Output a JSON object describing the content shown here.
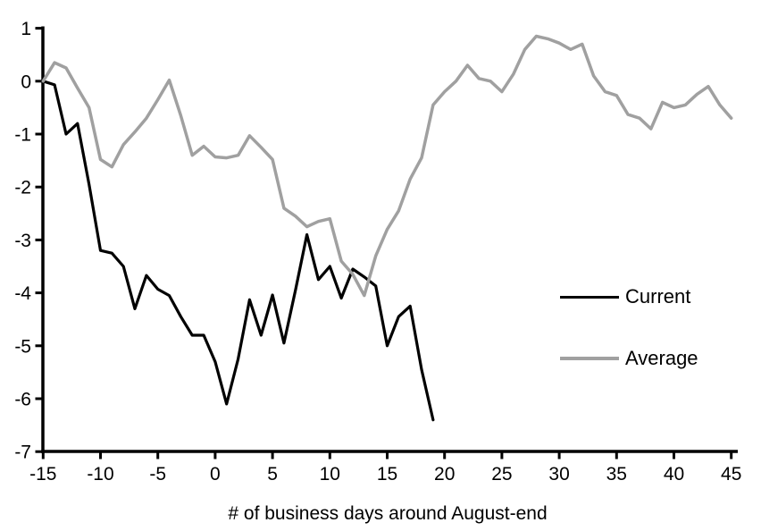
{
  "chart_data": {
    "type": "line",
    "title": "",
    "xlabel": "# of business days around August-end",
    "ylabel": "",
    "xlim": [
      -15,
      45
    ],
    "ylim": [
      -7,
      1
    ],
    "x_ticks": [
      -15,
      -10,
      -5,
      0,
      5,
      10,
      15,
      20,
      25,
      30,
      35,
      40,
      45
    ],
    "y_ticks": [
      1,
      0,
      -1,
      -2,
      -3,
      -4,
      -5,
      -6,
      -7
    ],
    "grid": false,
    "legend_position": "right-middle",
    "series": [
      {
        "name": "Current",
        "color": "#000000",
        "x_start": -15,
        "x_step": 1,
        "values": [
          0,
          -0.07,
          -1.0,
          -0.8,
          -1.95,
          -3.2,
          -3.25,
          -3.5,
          -4.3,
          -3.67,
          -3.93,
          -4.05,
          -4.45,
          -4.8,
          -4.8,
          -5.3,
          -6.1,
          -5.25,
          -4.13,
          -4.8,
          -4.04,
          -4.95,
          -3.95,
          -2.9,
          -3.75,
          -3.5,
          -4.1,
          -3.55,
          -3.7,
          -3.87,
          -5.0,
          -4.45,
          -4.25,
          -5.45,
          -6.4
        ]
      },
      {
        "name": "Average",
        "color": "#a0a0a0",
        "x_start": -15,
        "x_step": 1,
        "values": [
          0,
          0.35,
          0.25,
          -0.13,
          -0.5,
          -1.48,
          -1.62,
          -1.2,
          -0.96,
          -0.7,
          -0.35,
          0.02,
          -0.65,
          -1.4,
          -1.23,
          -1.43,
          -1.45,
          -1.4,
          -1.03,
          -1.25,
          -1.48,
          -2.4,
          -2.55,
          -2.75,
          -2.65,
          -2.6,
          -3.4,
          -3.65,
          -4.05,
          -3.3,
          -2.8,
          -2.45,
          -1.85,
          -1.45,
          -0.45,
          -0.2,
          0.0,
          0.3,
          0.05,
          0.0,
          -0.2,
          0.13,
          0.6,
          0.85,
          0.8,
          0.72,
          0.6,
          0.7,
          0.1,
          -0.2,
          -0.27,
          -0.63,
          -0.7,
          -0.9,
          -0.4,
          -0.5,
          -0.45,
          -0.25,
          -0.1,
          -0.45,
          -0.7
        ]
      }
    ]
  },
  "legend": {
    "items": [
      {
        "label": "Current",
        "color": "#000000"
      },
      {
        "label": "Average",
        "color": "#a0a0a0"
      }
    ]
  },
  "colors": {
    "axis": "#000000",
    "background": "#ffffff"
  }
}
